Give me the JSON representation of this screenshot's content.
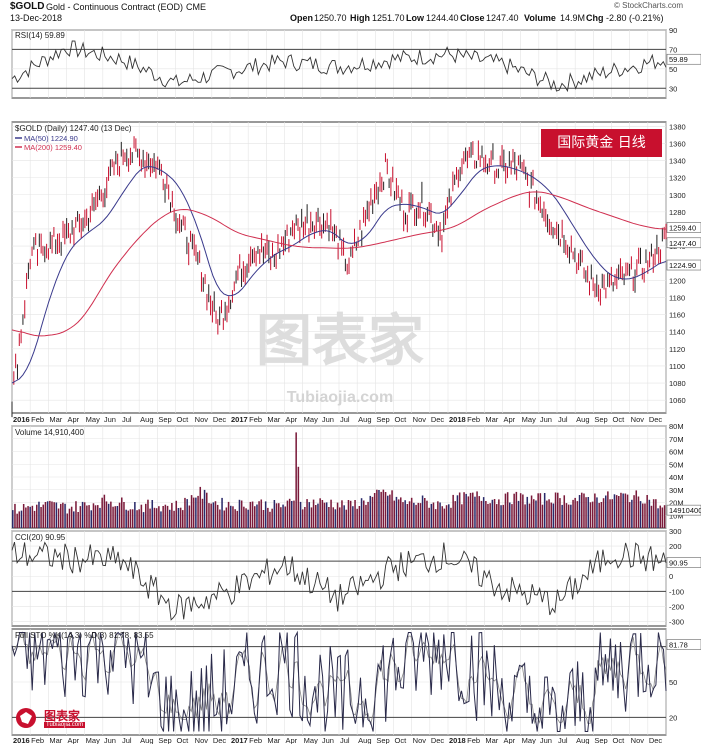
{
  "header": {
    "symbol": "$GOLD",
    "contract": "Gold - Continuous Contract (EOD)",
    "exchange": "CME",
    "date": "13-Dec-2018",
    "open_label": "Open",
    "open": "1250.70",
    "high_label": "High",
    "high": "1251.70",
    "low_label": "Low",
    "low": "1244.40",
    "close_label": "Close",
    "close": "1247.40",
    "volume_label": "Volume",
    "volume": "14.9M",
    "chg_label": "Chg",
    "chg": "-2.80 (-0.21%)",
    "credit": "© StockCharts.com"
  },
  "badge": "国际黄金 日线",
  "watermark": {
    "cn": "图表家",
    "en": "Tubiaojia.com"
  },
  "logo": {
    "cn": "图表家",
    "en": "Tubiaojia.com"
  },
  "colors": {
    "price": "#c8102e",
    "ma50": "#3a3a8c",
    "ma200": "#d03050",
    "volume_bar": "#7a1a3a",
    "badge": "#c8102e"
  },
  "chart_data": [
    {
      "type": "line",
      "panel": "rsi",
      "legend": "RSI(14) 59.89",
      "last_value": "59.89",
      "ylim": [
        20,
        90
      ],
      "y_ticks": [
        90,
        70,
        50,
        30
      ],
      "reference_lines": [
        70,
        30
      ],
      "x": [
        "2016-01",
        "2016-04",
        "2016-07",
        "2016-10",
        "2017-01",
        "2017-04",
        "2017-07",
        "2017-10",
        "2018-01",
        "2018-04",
        "2018-07",
        "2018-10",
        "2018-12"
      ],
      "values": [
        40,
        72,
        60,
        35,
        48,
        58,
        52,
        60,
        65,
        55,
        33,
        48,
        60
      ]
    },
    {
      "type": "line",
      "panel": "price",
      "legend": "$GOLD (Daily) 1247.40 (13 Dec)",
      "ma_legends": [
        "MA(50) 1224.90",
        "MA(200) 1259.40"
      ],
      "last_labels": [
        "1259.40",
        "1247.40",
        "1224.90"
      ],
      "ylim": [
        1045,
        1385
      ],
      "y_ticks": [
        1380,
        1360,
        1340,
        1320,
        1300,
        1280,
        1260,
        1240,
        1220,
        1200,
        1180,
        1160,
        1140,
        1120,
        1100,
        1080,
        1060
      ],
      "x_ticks": [
        "2016",
        "Feb",
        "Mar",
        "Apr",
        "May",
        "Jun",
        "Jul",
        "Aug",
        "Sep",
        "Oct",
        "Nov",
        "Dec",
        "2017",
        "Feb",
        "Mar",
        "Apr",
        "May",
        "Jun",
        "Jul",
        "Aug",
        "Sep",
        "Oct",
        "Nov",
        "Dec",
        "2018",
        "Feb",
        "Mar",
        "Apr",
        "May",
        "Jun",
        "Jul",
        "Aug",
        "Sep",
        "Oct",
        "Nov",
        "Dec"
      ],
      "x": [
        "2016-01",
        "2016-02",
        "2016-03",
        "2016-04",
        "2016-05",
        "2016-06",
        "2016-07",
        "2016-08",
        "2016-09",
        "2016-10",
        "2016-11",
        "2016-12",
        "2017-01",
        "2017-02",
        "2017-03",
        "2017-04",
        "2017-05",
        "2017-06",
        "2017-07",
        "2017-08",
        "2017-09",
        "2017-10",
        "2017-11",
        "2017-12",
        "2018-01",
        "2018-02",
        "2018-03",
        "2018-04",
        "2018-05",
        "2018-06",
        "2018-07",
        "2018-08",
        "2018-09",
        "2018-10",
        "2018-11",
        "2018-12"
      ],
      "series": [
        {
          "name": "$GOLD",
          "values": [
            1060,
            1230,
            1240,
            1255,
            1270,
            1310,
            1350,
            1345,
            1330,
            1265,
            1220,
            1150,
            1200,
            1240,
            1225,
            1260,
            1270,
            1265,
            1215,
            1280,
            1330,
            1280,
            1290,
            1255,
            1340,
            1345,
            1330,
            1335,
            1300,
            1265,
            1235,
            1195,
            1195,
            1205,
            1220,
            1247
          ]
        },
        {
          "name": "MA(50) 1224.90",
          "values": [
            1075,
            1100,
            1180,
            1235,
            1255,
            1270,
            1305,
            1335,
            1330,
            1310,
            1260,
            1185,
            1180,
            1210,
            1230,
            1240,
            1255,
            1260,
            1240,
            1250,
            1285,
            1290,
            1285,
            1275,
            1300,
            1330,
            1335,
            1330,
            1320,
            1300,
            1265,
            1230,
            1205,
            1200,
            1210,
            1225
          ]
        },
        {
          "name": "MA(200) 1259.40",
          "values": [
            1145,
            1135,
            1135,
            1140,
            1160,
            1200,
            1230,
            1255,
            1275,
            1285,
            1280,
            1270,
            1255,
            1250,
            1245,
            1240,
            1238,
            1238,
            1237,
            1240,
            1245,
            1250,
            1255,
            1258,
            1265,
            1280,
            1290,
            1300,
            1305,
            1300,
            1292,
            1283,
            1276,
            1268,
            1262,
            1259
          ]
        }
      ]
    },
    {
      "type": "bar",
      "panel": "volume",
      "legend": "Volume 14,910,400",
      "last_label": "14910400",
      "ylim": [
        0,
        80
      ],
      "y_ticks": [
        "80M",
        "70M",
        "60M",
        "50M",
        "40M",
        "30M",
        "20M",
        "10M"
      ],
      "x": [
        "2016-01",
        "2016-02",
        "2016-03",
        "2016-04",
        "2016-05",
        "2016-06",
        "2016-07",
        "2016-08",
        "2016-09",
        "2016-10",
        "2016-11",
        "2016-12",
        "2017-01",
        "2017-02",
        "2017-03",
        "2017-04",
        "2017-05",
        "2017-06",
        "2017-07",
        "2017-08",
        "2017-09",
        "2017-10",
        "2017-11",
        "2017-12",
        "2018-01",
        "2018-02",
        "2018-03",
        "2018-04",
        "2018-05",
        "2018-06",
        "2018-07",
        "2018-08",
        "2018-09",
        "2018-10",
        "2018-11",
        "2018-12"
      ],
      "values": [
        14,
        17,
        18,
        16,
        18,
        22,
        19,
        17,
        18,
        17,
        28,
        19,
        18,
        20,
        17,
        19,
        20,
        20,
        17,
        22,
        28,
        20,
        21,
        18,
        23,
        25,
        22,
        24,
        22,
        24,
        22,
        24,
        24,
        25,
        24,
        15
      ]
    },
    {
      "type": "line",
      "panel": "cci",
      "legend": "CCI(20) 90.95",
      "last_value": "90.95",
      "ylim": [
        -330,
        300
      ],
      "y_ticks": [
        300,
        200,
        100,
        0,
        -100,
        -200,
        -300
      ],
      "reference_lines": [
        100,
        -100
      ],
      "x": [
        "2016-01",
        "2016-04",
        "2016-07",
        "2016-10",
        "2017-01",
        "2017-04",
        "2017-07",
        "2017-10",
        "2018-01",
        "2018-04",
        "2018-07",
        "2018-10",
        "2018-12"
      ],
      "values": [
        150,
        120,
        100,
        -220,
        -100,
        80,
        -150,
        60,
        140,
        -80,
        -180,
        160,
        91
      ]
    },
    {
      "type": "line",
      "panel": "stochastic",
      "legend": "Full STO %K(14,3) %D(3) 81.78, 83.55",
      "last_value": "81.78",
      "ylim": [
        5,
        95
      ],
      "y_ticks": [
        80,
        50,
        20
      ],
      "reference_lines": [
        80,
        20
      ],
      "x": [
        "2016-01",
        "2016-04",
        "2016-07",
        "2016-10",
        "2017-01",
        "2017-04",
        "2017-07",
        "2017-10",
        "2018-01",
        "2018-04",
        "2018-07",
        "2018-10",
        "2018-12"
      ],
      "series": [
        {
          "name": "%K",
          "values": [
            80,
            75,
            85,
            15,
            40,
            70,
            30,
            60,
            85,
            40,
            15,
            60,
            82
          ]
        },
        {
          "name": "%D",
          "values": [
            78,
            72,
            82,
            18,
            38,
            68,
            32,
            58,
            82,
            42,
            18,
            58,
            84
          ]
        }
      ]
    }
  ]
}
